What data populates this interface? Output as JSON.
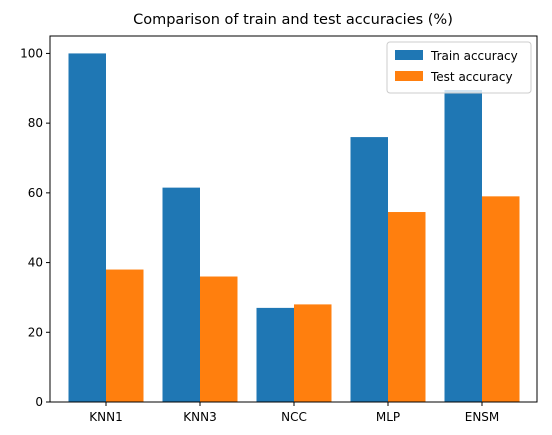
{
  "chart_data": {
    "type": "bar",
    "title": "Comparison of train and test accuracies (%)",
    "xlabel": "",
    "ylabel": "",
    "categories": [
      "KNN1",
      "KNN3",
      "NCC",
      "MLP",
      "ENSM"
    ],
    "series": [
      {
        "name": "Train accuracy",
        "values": [
          100.0,
          61.5,
          27.0,
          76.0,
          89.5
        ],
        "color": "#1f77b4"
      },
      {
        "name": "Test accuracy",
        "values": [
          38.0,
          36.0,
          28.0,
          54.5,
          59.0
        ],
        "color": "#ff7f0e"
      }
    ],
    "yticks": [
      0,
      20,
      40,
      60,
      80,
      100
    ],
    "ylim": [
      0,
      105
    ],
    "grid": false,
    "legend_position": "top-right"
  }
}
